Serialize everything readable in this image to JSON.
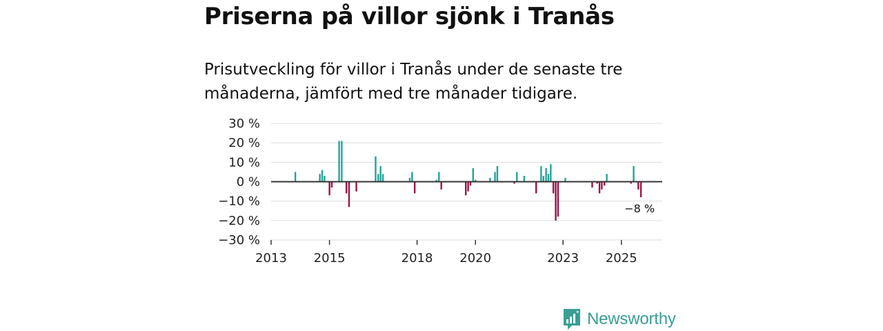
{
  "header": {
    "title": "Priserna på villor sjönk i Tranås",
    "subtitle": "Prisutveckling för villor i Tranås under de senaste tre månaderna, jämfört med tre månader tidigare."
  },
  "brand": {
    "name": "Newsworthy"
  },
  "colors": {
    "positive": "#23a396",
    "negative": "#9c1446",
    "grid": "#dddddd",
    "zero": "#333333",
    "logo": "#3a9e94"
  },
  "chart_data": {
    "type": "bar",
    "title": "Priserna på villor sjönk i Tranås",
    "xlabel": "",
    "ylabel": "",
    "ylim": [
      -30,
      30
    ],
    "xlim": [
      2013.0,
      2026.4
    ],
    "yticks": [
      30,
      20,
      10,
      0,
      -10,
      -20,
      -30
    ],
    "ytick_labels": [
      "30 %",
      "20 %",
      "10 %",
      "0 %",
      "−10 %",
      "−20 %",
      "−30 %"
    ],
    "xticks": [
      2013,
      2015,
      2018,
      2020,
      2023,
      2025
    ],
    "last_value_label": "−8 %",
    "x": [
      2013.83,
      2014.67,
      2014.75,
      2014.83,
      2015.0,
      2015.08,
      2015.33,
      2015.42,
      2015.58,
      2015.67,
      2015.92,
      2016.58,
      2016.67,
      2016.75,
      2016.83,
      2017.75,
      2017.83,
      2017.92,
      2018.67,
      2018.75,
      2018.83,
      2019.67,
      2019.75,
      2019.83,
      2019.92,
      2020.0,
      2020.5,
      2020.67,
      2020.75,
      2021.33,
      2021.42,
      2021.67,
      2022.08,
      2022.25,
      2022.33,
      2022.42,
      2022.5,
      2022.58,
      2022.67,
      2022.75,
      2022.83,
      2023.08,
      2024.0,
      2024.17,
      2024.25,
      2024.33,
      2024.42,
      2024.5,
      2025.33,
      2025.42,
      2025.58,
      2025.67
    ],
    "values": [
      5,
      4,
      6,
      3,
      -7,
      -3,
      21,
      21,
      -6,
      -13,
      -5,
      13,
      4,
      8,
      4,
      2,
      5,
      -6,
      1,
      5,
      -4,
      -7,
      -5,
      -2,
      7,
      1,
      2,
      5,
      8,
      -1,
      5,
      3,
      -6,
      8,
      3,
      7,
      4,
      9,
      -6,
      -20,
      -18,
      2,
      -3,
      -1,
      -6,
      -4,
      -2,
      4,
      -1,
      8,
      -4,
      -8
    ]
  }
}
